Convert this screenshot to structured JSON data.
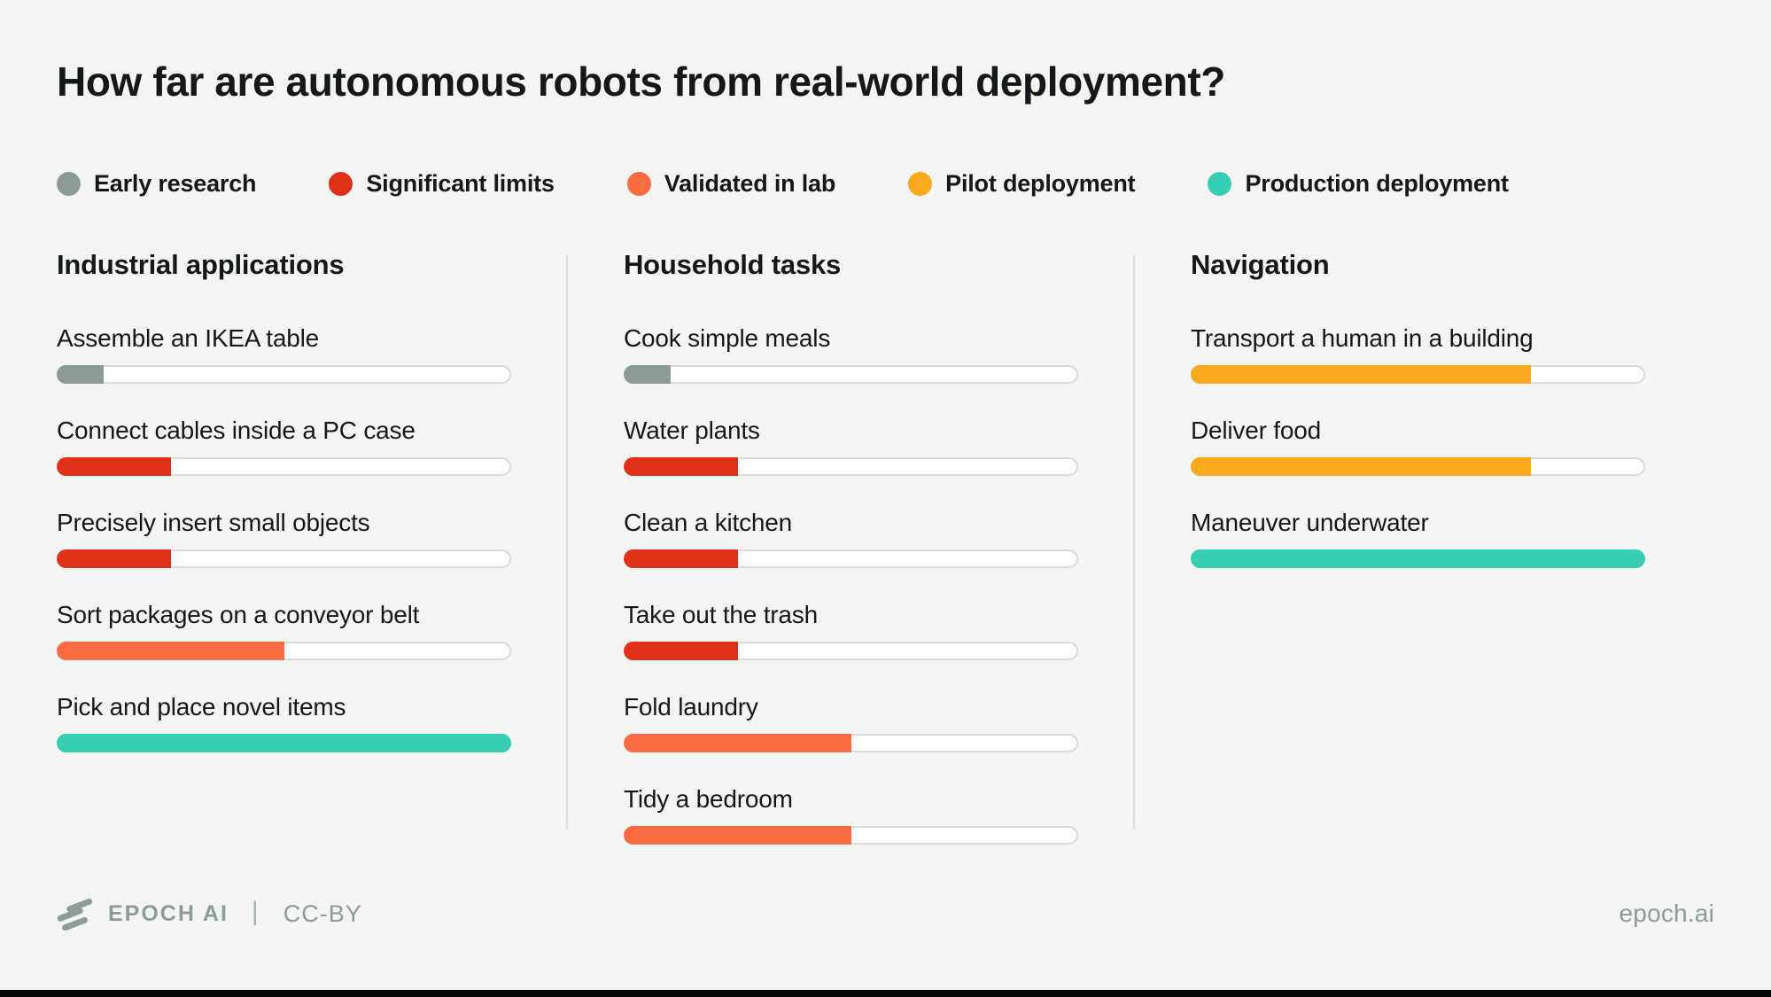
{
  "title": "How far are autonomous robots from real-world deployment?",
  "background_color": "#F4F4F2",
  "legend": {
    "items": [
      {
        "label": "Early research",
        "color": "#8A9A96"
      },
      {
        "label": "Significant limits",
        "color": "#E03118"
      },
      {
        "label": "Validated in lab",
        "color": "#F96B42"
      },
      {
        "label": "Pilot deployment",
        "color": "#FBA71F"
      },
      {
        "label": "Production deployment",
        "color": "#37CFB3"
      }
    ]
  },
  "stage_colors": {
    "Early research": "#8A9A96",
    "Significant limits": "#E03118",
    "Validated in lab": "#F96B42",
    "Pilot deployment": "#FBA71F",
    "Production deployment": "#37CFB3"
  },
  "chart_data": {
    "type": "bar",
    "title": "How far are autonomous robots from real-world deployment?",
    "orientation": "horizontal",
    "value_axis_range": [
      0,
      100
    ],
    "grid": false,
    "legend_position": "top",
    "stage_scale_percent": {
      "Early research": 10,
      "Significant limits": 25,
      "Validated in lab": 50,
      "Pilot deployment": 75,
      "Production deployment": 100
    },
    "groups": [
      {
        "title": "Industrial applications",
        "tasks": [
          {
            "label": "Assemble an IKEA table",
            "stage": "Early research",
            "percent": 10
          },
          {
            "label": "Connect cables inside a PC case",
            "stage": "Significant limits",
            "percent": 25
          },
          {
            "label": "Precisely insert small objects",
            "stage": "Significant limits",
            "percent": 25
          },
          {
            "label": "Sort packages on a conveyor belt",
            "stage": "Validated in lab",
            "percent": 50
          },
          {
            "label": "Pick and place novel items",
            "stage": "Production deployment",
            "percent": 100
          }
        ]
      },
      {
        "title": "Household tasks",
        "tasks": [
          {
            "label": "Cook simple meals",
            "stage": "Early research",
            "percent": 10
          },
          {
            "label": "Water plants",
            "stage": "Significant limits",
            "percent": 25
          },
          {
            "label": "Clean a kitchen",
            "stage": "Significant limits",
            "percent": 25
          },
          {
            "label": "Take out the trash",
            "stage": "Significant limits",
            "percent": 25
          },
          {
            "label": "Fold laundry",
            "stage": "Validated in lab",
            "percent": 50
          },
          {
            "label": "Tidy a bedroom",
            "stage": "Validated in lab",
            "percent": 50
          }
        ]
      },
      {
        "title": "Navigation",
        "tasks": [
          {
            "label": "Transport a human in a building",
            "stage": "Pilot deployment",
            "percent": 75
          },
          {
            "label": "Deliver food",
            "stage": "Pilot deployment",
            "percent": 75
          },
          {
            "label": "Maneuver underwater",
            "stage": "Production deployment",
            "percent": 100
          }
        ]
      }
    ]
  },
  "footer": {
    "brand": "EPOCH AI",
    "separator": "|",
    "license": "CC-BY",
    "site": "epoch.ai",
    "color": "#8C9C99"
  }
}
